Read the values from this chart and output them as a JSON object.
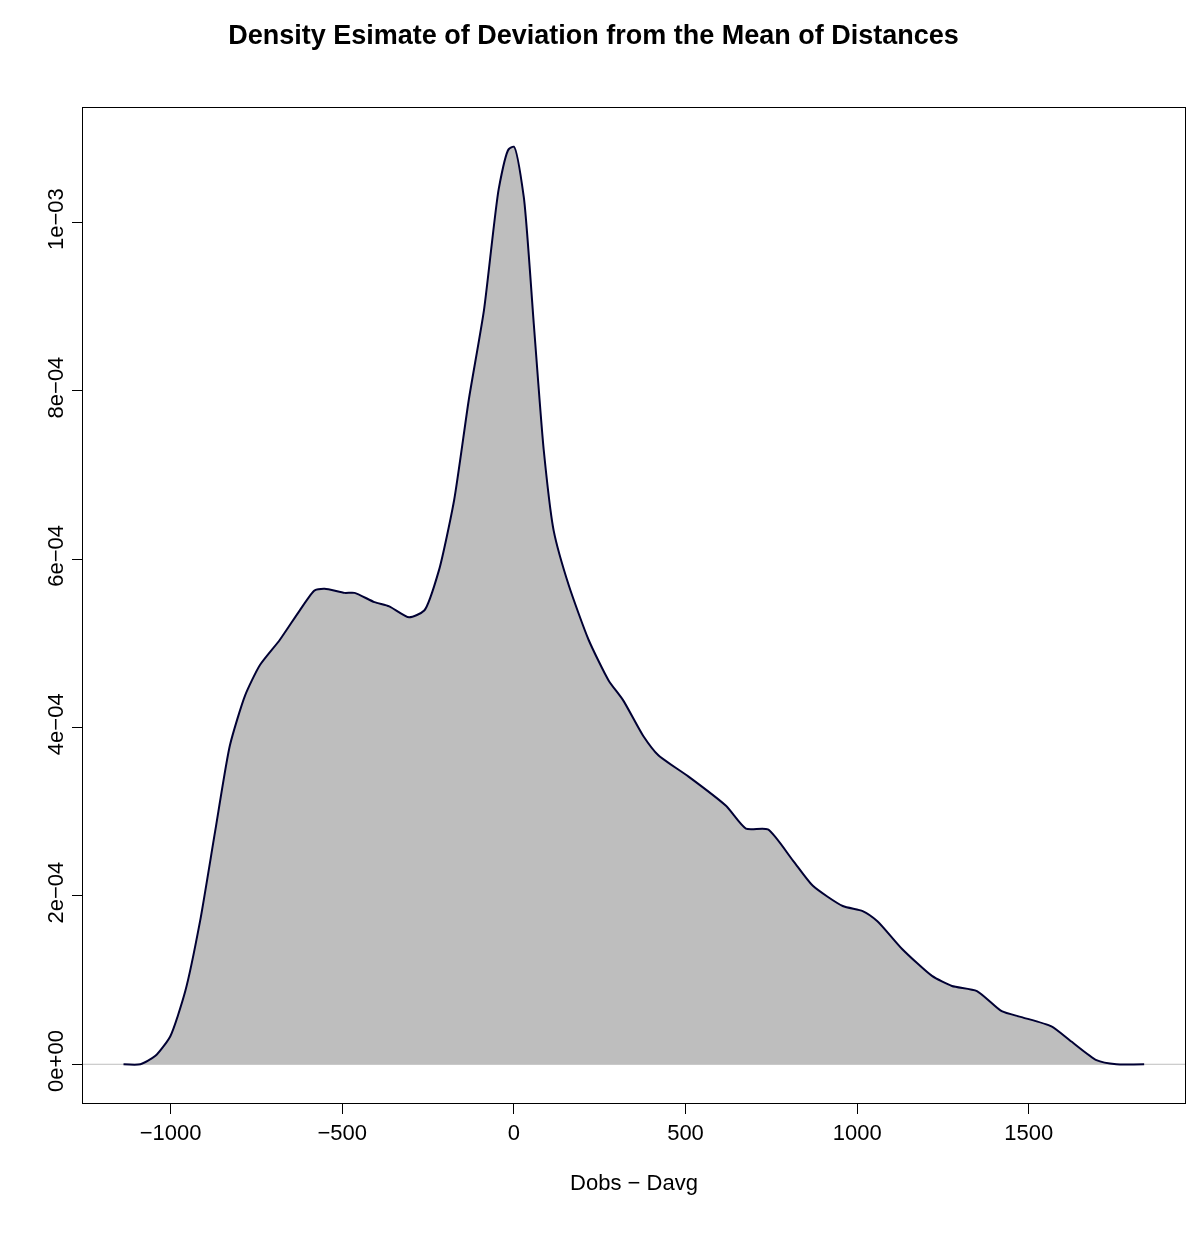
{
  "chart_data": {
    "type": "area",
    "title": "Density Esimate of Deviation from the Mean of Distances",
    "xlabel": "Dobs − Davg",
    "x": [
      -1137,
      -1088,
      -1044,
      -1001,
      -957,
      -914,
      -870,
      -827,
      -783,
      -740,
      -682,
      -624,
      -580,
      -551,
      -493,
      -464,
      -406,
      -363,
      -305,
      -261,
      -218,
      -174,
      -131,
      -87,
      -44,
      -15,
      0,
      29,
      58,
      87,
      116,
      160,
      218,
      276,
      319,
      377,
      421,
      508,
      618,
      676,
      740,
      813,
      871,
      958,
      1016,
      1059,
      1131,
      1218,
      1276,
      1349,
      1421,
      1479,
      1566,
      1624,
      1697,
      1755,
      1836
    ],
    "series": [
      {
        "color": "#bebebe",
        "values": [
          0,
          0,
          1e-05,
          3.3e-05,
          8.7e-05,
          0.00017,
          0.000277,
          0.000379,
          0.000438,
          0.000474,
          0.000504,
          0.000539,
          0.000563,
          0.000565,
          0.00056,
          0.00056,
          0.000549,
          0.000544,
          0.000531,
          0.000539,
          0.000587,
          0.00067,
          0.00079,
          0.000896,
          0.00104,
          0.001087,
          0.00109,
          0.00103,
          0.00088,
          0.00073,
          0.000634,
          0.000569,
          0.000504,
          0.000456,
          0.000432,
          0.00039,
          0.000367,
          0.000342,
          0.000307,
          0.00028,
          0.000279,
          0.000242,
          0.000212,
          0.000188,
          0.000182,
          0.00017,
          0.000137,
          0.000105,
          9.3e-05,
          8.7e-05,
          6.3e-05,
          5.6e-05,
          4.5e-05,
          2.7e-05,
          5e-06,
          0,
          0
        ]
      }
    ],
    "xlim": [
      -1255,
      1955
    ],
    "xticks": [
      {
        "value": -1000,
        "label": "−1000"
      },
      {
        "value": -500,
        "label": "−500"
      },
      0,
      500,
      1000,
      1500
    ],
    "ylim": [
      -4.6e-05,
      0.001136
    ],
    "yticks": [
      {
        "value": 0,
        "label": "0e+00"
      },
      {
        "value": 0.0002,
        "label": "2e−04"
      },
      {
        "value": 0.0004,
        "label": "4e−04"
      },
      {
        "value": 0.0006,
        "label": "6e−04"
      },
      {
        "value": 0.0008,
        "label": "8e−04"
      },
      {
        "value": 0.001,
        "label": "1e−03"
      }
    ],
    "ref_lines": [
      {
        "axis": "y",
        "value": 0,
        "color": "#bebebe"
      }
    ],
    "grid": false
  }
}
